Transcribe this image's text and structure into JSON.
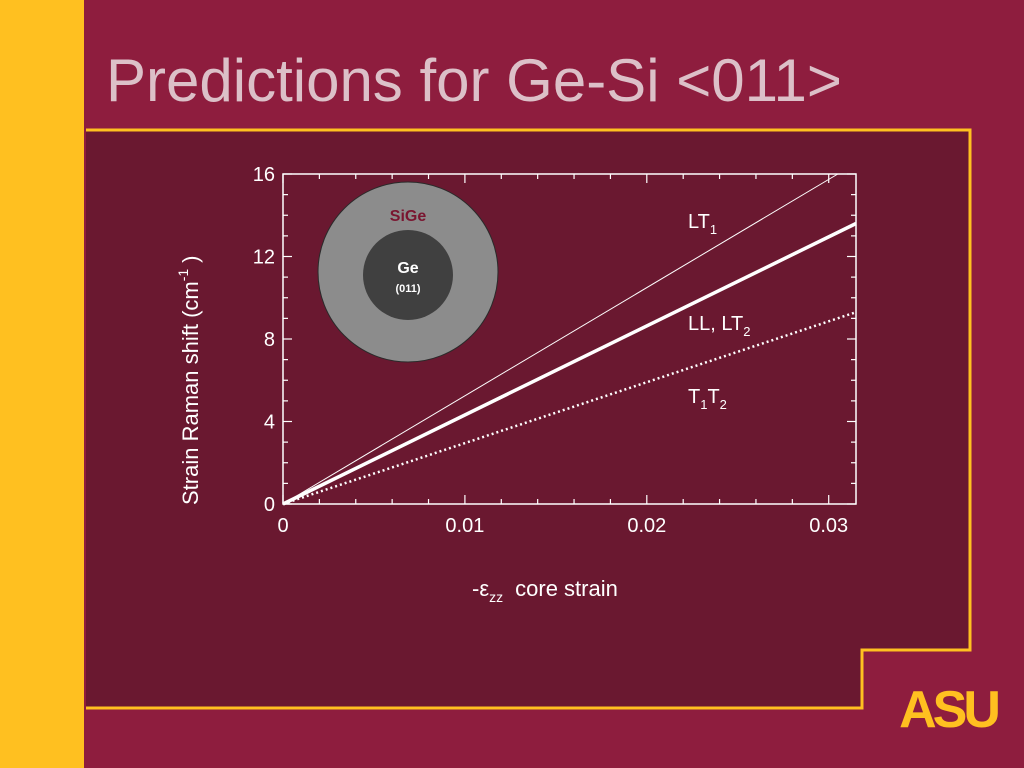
{
  "slide": {
    "title": "Predictions for Ge-Si <011>",
    "logo_text": "ASU"
  },
  "colors": {
    "background": "#8e1d3e",
    "panel": "#6a1830",
    "accent_gold": "#ffc020",
    "shell_gray": "#8c8c8c",
    "core_gray": "#404040"
  },
  "inset": {
    "shell_label": "SiGe",
    "core_label": "Ge",
    "core_sublabel": "(011)"
  },
  "chart_data": {
    "type": "line",
    "xlabel_prefix": "-ε",
    "xlabel_sub": "zz",
    "xlabel_rest": "core strain",
    "ylabel_main": "Strain Raman shift (cm",
    "ylabel_sup": "-1",
    "ylabel_close": ")",
    "xlim": [
      0,
      0.0315
    ],
    "ylim": [
      0,
      16
    ],
    "x_ticks": [
      0,
      0.01,
      0.02,
      0.03
    ],
    "x_tick_labels": [
      "0",
      "0.01",
      "0.02",
      "0.03"
    ],
    "y_ticks": [
      0,
      4,
      8,
      12,
      16
    ],
    "y_tick_labels": [
      "0",
      "4",
      "8",
      "12",
      "16"
    ],
    "grid": false,
    "series": [
      {
        "name": "LT",
        "name_sub": "1",
        "style": "thin",
        "x": [
          0,
          0.0305
        ],
        "y": [
          0,
          16
        ]
      },
      {
        "name": "LL, LT",
        "name_sub": "2",
        "style": "thick",
        "x": [
          0,
          0.0315
        ],
        "y": [
          0,
          13.6
        ]
      },
      {
        "name": "T",
        "name_sub": "1",
        "name_mid": "T",
        "name_sub2": "2",
        "style": "dotted",
        "x": [
          0,
          0.0315
        ],
        "y": [
          0,
          9.3
        ]
      }
    ]
  }
}
